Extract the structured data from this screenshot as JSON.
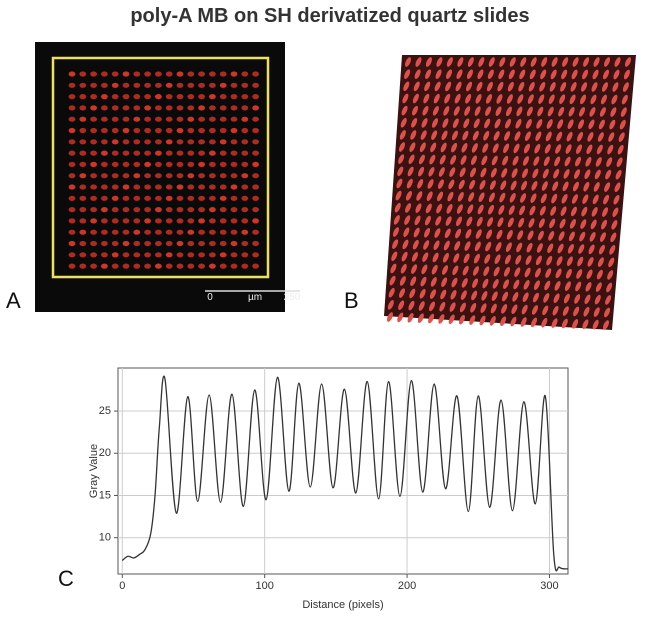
{
  "title": "poly-A MB on SH derivatized quartz slides",
  "panel_a": {
    "label": "A",
    "scale_bar": {
      "start": "0",
      "unit": "µm",
      "end": "250"
    }
  },
  "panel_b": {
    "label": "B"
  },
  "panel_c": {
    "label": "C"
  },
  "chart_data": {
    "type": "line",
    "x_label": "Distance (pixels)",
    "y_label": "Gray Value",
    "xlim": [
      -3,
      313
    ],
    "ylim": [
      5.7,
      30.1
    ],
    "xticks": [
      0,
      100,
      200,
      300
    ],
    "yticks": [
      10,
      15,
      20,
      25
    ],
    "grid": true,
    "series": [
      {
        "color": "#333333",
        "x": [
          0,
          4,
          8,
          12,
          16,
          20,
          23,
          26,
          30,
          38,
          46,
          53,
          61,
          69,
          77,
          85,
          93,
          101,
          109,
          117,
          124,
          132,
          140,
          148,
          156,
          164,
          172,
          180,
          187,
          195,
          203,
          211,
          219,
          227,
          235,
          243,
          250,
          258,
          266,
          274,
          282,
          290,
          297,
          303,
          307,
          313
        ],
        "values": [
          7.3,
          7.8,
          7.6,
          8,
          8.6,
          10.5,
          15,
          23,
          28.8,
          12.9,
          26.7,
          14.3,
          26.9,
          14.2,
          27,
          13.7,
          27.5,
          14.5,
          29,
          15.5,
          28.3,
          16,
          28.2,
          15.9,
          27.6,
          15.3,
          28.5,
          14.6,
          28.5,
          14.9,
          28.6,
          15.4,
          28.2,
          15.8,
          26.8,
          13.1,
          26.8,
          13.6,
          26.3,
          13.2,
          26.1,
          14,
          26.8,
          8,
          6.5,
          6.3
        ]
      }
    ]
  }
}
